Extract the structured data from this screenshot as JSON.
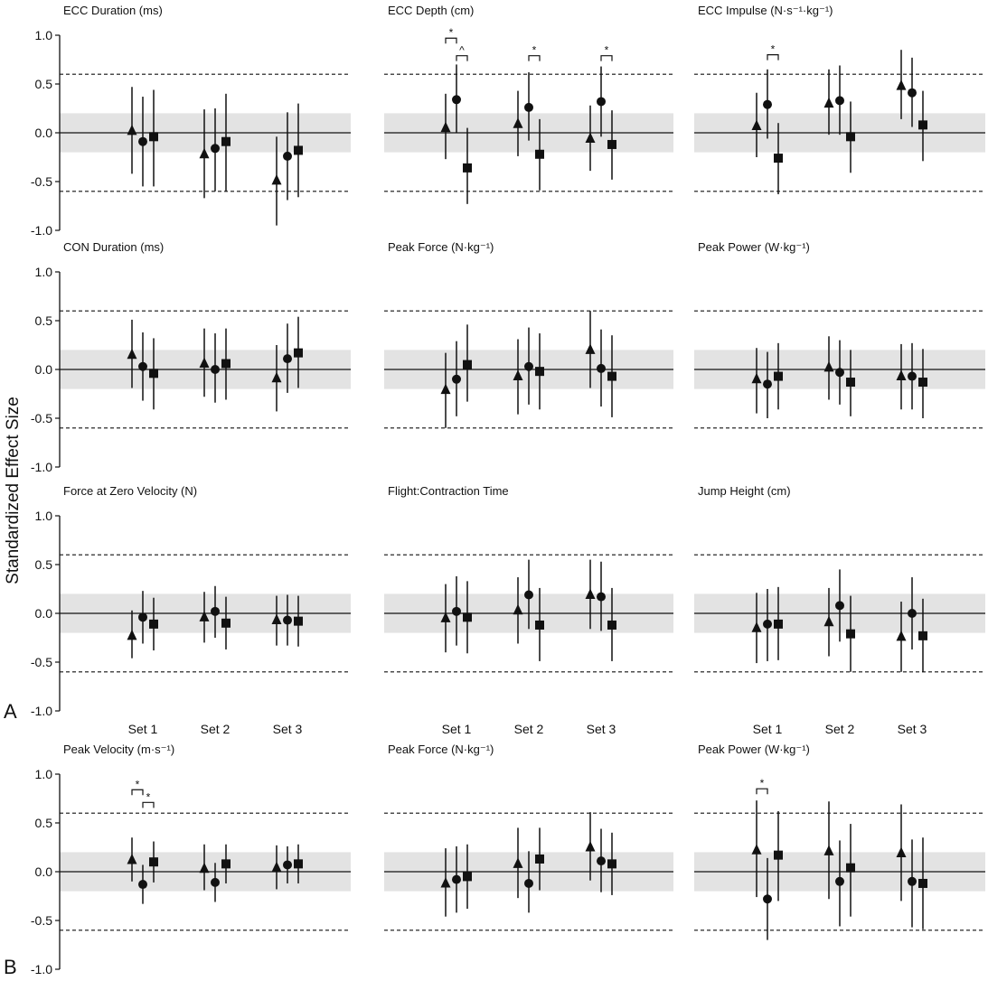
{
  "figure": {
    "ylabel": "Standardized Effect Size",
    "panel_labels": [
      "A",
      "B"
    ],
    "markers": [
      "triangle",
      "circle",
      "square"
    ],
    "colors": {
      "marker": "#111111",
      "band": "#e3e3e3",
      "line": "#111111"
    }
  },
  "chart_data": [
    {
      "type": "scatter",
      "title": "ECC Duration (ms)",
      "ylim": [
        -1.0,
        1.0
      ],
      "yticks": [
        "1.0",
        "0.5",
        "0.0",
        "-0.5",
        "-1.0"
      ],
      "yticks_visible": true,
      "categories": [
        "Set 1",
        "Set 2",
        "Set 3"
      ],
      "categories_visible": false,
      "baseline": 0.0,
      "band": [
        -0.2,
        0.2
      ],
      "thresholds": [
        0.6,
        -0.6
      ],
      "series": [
        [
          {
            "y": 0.02,
            "lo": -0.42,
            "hi": 0.47
          },
          {
            "y": -0.09,
            "lo": -0.55,
            "hi": 0.37
          },
          {
            "y": -0.04,
            "lo": -0.55,
            "hi": 0.44
          }
        ],
        [
          {
            "y": -0.22,
            "lo": -0.67,
            "hi": 0.24
          },
          {
            "y": -0.16,
            "lo": -0.6,
            "hi": 0.25
          },
          {
            "y": -0.09,
            "lo": -0.6,
            "hi": 0.4
          }
        ],
        [
          {
            "y": -0.49,
            "lo": -0.95,
            "hi": -0.04
          },
          {
            "y": -0.24,
            "lo": -0.69,
            "hi": 0.21
          },
          {
            "y": -0.18,
            "lo": -0.66,
            "hi": 0.3
          }
        ]
      ],
      "brackets": []
    },
    {
      "type": "scatter",
      "title": "ECC Depth (cm)",
      "ylim": [
        -1.0,
        1.0
      ],
      "yticks": [
        "1.0",
        "0.5",
        "0.0",
        "-0.5",
        "-1.0"
      ],
      "yticks_visible": false,
      "categories": [
        "Set 1",
        "Set 2",
        "Set 3"
      ],
      "categories_visible": false,
      "baseline": 0.0,
      "band": [
        -0.2,
        0.2
      ],
      "thresholds": [
        0.6,
        -0.6
      ],
      "series": [
        [
          {
            "y": 0.05,
            "lo": -0.27,
            "hi": 0.4
          },
          {
            "y": 0.34,
            "lo": 0.0,
            "hi": 0.7
          },
          {
            "y": -0.36,
            "lo": -0.73,
            "hi": 0.05
          }
        ],
        [
          {
            "y": 0.09,
            "lo": -0.24,
            "hi": 0.43
          },
          {
            "y": 0.26,
            "lo": -0.08,
            "hi": 0.62
          },
          {
            "y": -0.22,
            "lo": -0.59,
            "hi": 0.14
          }
        ],
        [
          {
            "y": -0.06,
            "lo": -0.39,
            "hi": 0.28
          },
          {
            "y": 0.32,
            "lo": -0.04,
            "hi": 0.68
          },
          {
            "y": -0.12,
            "lo": -0.48,
            "hi": 0.23
          }
        ]
      ],
      "brackets": [
        {
          "set": 0,
          "from": 0,
          "to": 1,
          "y": 0.97,
          "label": "*"
        },
        {
          "set": 0,
          "from": 1,
          "to": 2,
          "y": 0.79,
          "label": "^"
        },
        {
          "set": 1,
          "from": 1,
          "to": 2,
          "y": 0.79,
          "label": "*"
        },
        {
          "set": 2,
          "from": 1,
          "to": 2,
          "y": 0.79,
          "label": "*"
        }
      ]
    },
    {
      "type": "scatter",
      "title": "ECC Impulse (N·s⁻¹·kg⁻¹)",
      "ylim": [
        -1.0,
        1.0
      ],
      "yticks": [
        "1.0",
        "0.5",
        "0.0",
        "-0.5",
        "-1.0"
      ],
      "yticks_visible": false,
      "categories": [
        "Set 1",
        "Set 2",
        "Set 3"
      ],
      "categories_visible": false,
      "baseline": 0.0,
      "band": [
        -0.2,
        0.2
      ],
      "thresholds": [
        0.6,
        -0.6
      ],
      "series": [
        [
          {
            "y": 0.07,
            "lo": -0.25,
            "hi": 0.41
          },
          {
            "y": 0.29,
            "lo": -0.06,
            "hi": 0.65
          },
          {
            "y": -0.26,
            "lo": -0.63,
            "hi": 0.1
          }
        ],
        [
          {
            "y": 0.3,
            "lo": -0.02,
            "hi": 0.65
          },
          {
            "y": 0.33,
            "lo": -0.02,
            "hi": 0.69
          },
          {
            "y": -0.04,
            "lo": -0.41,
            "hi": 0.32
          }
        ],
        [
          {
            "y": 0.48,
            "lo": 0.14,
            "hi": 0.85
          },
          {
            "y": 0.41,
            "lo": 0.06,
            "hi": 0.77
          },
          {
            "y": 0.08,
            "lo": -0.29,
            "hi": 0.43
          }
        ]
      ],
      "brackets": [
        {
          "set": 0,
          "from": 1,
          "to": 2,
          "y": 0.8,
          "label": "*"
        }
      ]
    },
    {
      "type": "scatter",
      "title": "CON Duration (ms)",
      "ylim": [
        -1.0,
        1.0
      ],
      "yticks": [
        "1.0",
        "0.5",
        "0.0",
        "-0.5",
        "-1.0"
      ],
      "yticks_visible": true,
      "categories": [
        "Set 1",
        "Set 2",
        "Set 3"
      ],
      "categories_visible": false,
      "baseline": 0.0,
      "band": [
        -0.2,
        0.2
      ],
      "thresholds": [
        0.6,
        -0.6
      ],
      "series": [
        [
          {
            "y": 0.15,
            "lo": -0.19,
            "hi": 0.51
          },
          {
            "y": 0.03,
            "lo": -0.32,
            "hi": 0.38
          },
          {
            "y": -0.04,
            "lo": -0.41,
            "hi": 0.32
          }
        ],
        [
          {
            "y": 0.06,
            "lo": -0.28,
            "hi": 0.42
          },
          {
            "y": 0.0,
            "lo": -0.34,
            "hi": 0.37
          },
          {
            "y": 0.06,
            "lo": -0.31,
            "hi": 0.42
          }
        ],
        [
          {
            "y": -0.09,
            "lo": -0.43,
            "hi": 0.25
          },
          {
            "y": 0.11,
            "lo": -0.24,
            "hi": 0.47
          },
          {
            "y": 0.17,
            "lo": -0.19,
            "hi": 0.54
          }
        ]
      ],
      "brackets": []
    },
    {
      "type": "scatter",
      "title": "Peak Force (N·kg⁻¹)",
      "ylim": [
        -1.0,
        1.0
      ],
      "yticks": [
        "1.0",
        "0.5",
        "0.0",
        "-0.5",
        "-1.0"
      ],
      "yticks_visible": false,
      "categories": [
        "Set 1",
        "Set 2",
        "Set 3"
      ],
      "categories_visible": false,
      "baseline": 0.0,
      "band": [
        -0.2,
        0.2
      ],
      "thresholds": [
        0.6,
        -0.6
      ],
      "series": [
        [
          {
            "y": -0.21,
            "lo": -0.6,
            "hi": 0.17
          },
          {
            "y": -0.1,
            "lo": -0.48,
            "hi": 0.29
          },
          {
            "y": 0.05,
            "lo": -0.33,
            "hi": 0.46
          }
        ],
        [
          {
            "y": -0.07,
            "lo": -0.46,
            "hi": 0.31
          },
          {
            "y": 0.03,
            "lo": -0.36,
            "hi": 0.43
          },
          {
            "y": -0.02,
            "lo": -0.41,
            "hi": 0.37
          }
        ],
        [
          {
            "y": 0.2,
            "lo": -0.19,
            "hi": 0.6
          },
          {
            "y": 0.01,
            "lo": -0.38,
            "hi": 0.41
          },
          {
            "y": -0.07,
            "lo": -0.49,
            "hi": 0.35
          }
        ]
      ],
      "brackets": []
    },
    {
      "type": "scatter",
      "title": "Peak Power (W·kg⁻¹)",
      "ylim": [
        -1.0,
        1.0
      ],
      "yticks": [
        "1.0",
        "0.5",
        "0.0",
        "-0.5",
        "-1.0"
      ],
      "yticks_visible": false,
      "categories": [
        "Set 1",
        "Set 2",
        "Set 3"
      ],
      "categories_visible": false,
      "baseline": 0.0,
      "band": [
        -0.2,
        0.2
      ],
      "thresholds": [
        0.6,
        -0.6
      ],
      "series": [
        [
          {
            "y": -0.1,
            "lo": -0.45,
            "hi": 0.22
          },
          {
            "y": -0.15,
            "lo": -0.5,
            "hi": 0.18
          },
          {
            "y": -0.07,
            "lo": -0.41,
            "hi": 0.27
          }
        ],
        [
          {
            "y": 0.02,
            "lo": -0.31,
            "hi": 0.34
          },
          {
            "y": -0.03,
            "lo": -0.36,
            "hi": 0.3
          },
          {
            "y": -0.13,
            "lo": -0.48,
            "hi": 0.2
          }
        ],
        [
          {
            "y": -0.07,
            "lo": -0.41,
            "hi": 0.26
          },
          {
            "y": -0.07,
            "lo": -0.41,
            "hi": 0.27
          },
          {
            "y": -0.13,
            "lo": -0.5,
            "hi": 0.21
          }
        ]
      ],
      "brackets": []
    },
    {
      "type": "scatter",
      "title": "Force at Zero Velocity (N)",
      "ylim": [
        -1.0,
        1.0
      ],
      "yticks": [
        "1.0",
        "0.5",
        "0.0",
        "-0.5",
        "-1.0"
      ],
      "yticks_visible": true,
      "categories": [
        "Set 1",
        "Set 2",
        "Set 3"
      ],
      "categories_visible": true,
      "baseline": 0.0,
      "band": [
        -0.2,
        0.2
      ],
      "thresholds": [
        0.6,
        -0.6
      ],
      "series": [
        [
          {
            "y": -0.23,
            "lo": -0.46,
            "hi": 0.03
          },
          {
            "y": -0.04,
            "lo": -0.31,
            "hi": 0.23
          },
          {
            "y": -0.11,
            "lo": -0.38,
            "hi": 0.16
          }
        ],
        [
          {
            "y": -0.04,
            "lo": -0.3,
            "hi": 0.22
          },
          {
            "y": 0.02,
            "lo": -0.25,
            "hi": 0.28
          },
          {
            "y": -0.1,
            "lo": -0.37,
            "hi": 0.17
          }
        ],
        [
          {
            "y": -0.07,
            "lo": -0.33,
            "hi": 0.18
          },
          {
            "y": -0.07,
            "lo": -0.33,
            "hi": 0.19
          },
          {
            "y": -0.08,
            "lo": -0.34,
            "hi": 0.18
          }
        ]
      ],
      "brackets": []
    },
    {
      "type": "scatter",
      "title": "Flight:Contraction Time",
      "ylim": [
        -1.0,
        1.0
      ],
      "yticks": [
        "1.0",
        "0.5",
        "0.0",
        "-0.5",
        "-1.0"
      ],
      "yticks_visible": false,
      "categories": [
        "Set 1",
        "Set 2",
        "Set 3"
      ],
      "categories_visible": true,
      "baseline": 0.0,
      "band": [
        -0.2,
        0.2
      ],
      "thresholds": [
        0.6,
        -0.6
      ],
      "series": [
        [
          {
            "y": -0.05,
            "lo": -0.4,
            "hi": 0.3
          },
          {
            "y": 0.02,
            "lo": -0.33,
            "hi": 0.38
          },
          {
            "y": -0.04,
            "lo": -0.41,
            "hi": 0.33
          }
        ],
        [
          {
            "y": 0.03,
            "lo": -0.31,
            "hi": 0.37
          },
          {
            "y": 0.19,
            "lo": -0.16,
            "hi": 0.55
          },
          {
            "y": -0.12,
            "lo": -0.49,
            "hi": 0.26
          }
        ],
        [
          {
            "y": 0.19,
            "lo": -0.16,
            "hi": 0.55
          },
          {
            "y": 0.17,
            "lo": -0.18,
            "hi": 0.53
          },
          {
            "y": -0.12,
            "lo": -0.49,
            "hi": 0.26
          }
        ]
      ],
      "brackets": []
    },
    {
      "type": "scatter",
      "title": "Jump Height (cm)",
      "ylim": [
        -1.0,
        1.0
      ],
      "yticks": [
        "1.0",
        "0.5",
        "0.0",
        "-0.5",
        "-1.0"
      ],
      "yticks_visible": false,
      "categories": [
        "Set 1",
        "Set 2",
        "Set 3"
      ],
      "categories_visible": true,
      "baseline": 0.0,
      "band": [
        -0.2,
        0.2
      ],
      "thresholds": [
        0.6,
        -0.6
      ],
      "series": [
        [
          {
            "y": -0.15,
            "lo": -0.51,
            "hi": 0.21
          },
          {
            "y": -0.11,
            "lo": -0.49,
            "hi": 0.25
          },
          {
            "y": -0.11,
            "lo": -0.48,
            "hi": 0.27
          }
        ],
        [
          {
            "y": -0.09,
            "lo": -0.44,
            "hi": 0.26
          },
          {
            "y": 0.08,
            "lo": -0.29,
            "hi": 0.45
          },
          {
            "y": -0.21,
            "lo": -0.6,
            "hi": 0.18
          }
        ],
        [
          {
            "y": -0.24,
            "lo": -0.6,
            "hi": 0.12
          },
          {
            "y": 0.0,
            "lo": -0.37,
            "hi": 0.37
          },
          {
            "y": -0.23,
            "lo": -0.6,
            "hi": 0.15
          }
        ]
      ],
      "brackets": []
    },
    {
      "type": "scatter",
      "title": "Peak Velocity (m·s⁻¹)",
      "ylim": [
        -1.0,
        1.0
      ],
      "yticks": [
        "1.0",
        "0.5",
        "0.0",
        "-0.5",
        "-1.0"
      ],
      "yticks_visible": true,
      "categories": [
        "Set 1",
        "Set 2",
        "Set 3"
      ],
      "categories_visible": true,
      "baseline": 0.0,
      "band": [
        -0.2,
        0.2
      ],
      "thresholds": [
        0.6,
        -0.6
      ],
      "series": [
        [
          {
            "y": 0.12,
            "lo": -0.1,
            "hi": 0.35
          },
          {
            "y": -0.13,
            "lo": -0.33,
            "hi": 0.07
          },
          {
            "y": 0.1,
            "lo": -0.11,
            "hi": 0.31
          }
        ],
        [
          {
            "y": 0.03,
            "lo": -0.19,
            "hi": 0.28
          },
          {
            "y": -0.11,
            "lo": -0.31,
            "hi": 0.09
          },
          {
            "y": 0.08,
            "lo": -0.12,
            "hi": 0.28
          }
        ],
        [
          {
            "y": 0.04,
            "lo": -0.18,
            "hi": 0.27
          },
          {
            "y": 0.07,
            "lo": -0.12,
            "hi": 0.26
          },
          {
            "y": 0.08,
            "lo": -0.12,
            "hi": 0.28
          }
        ]
      ],
      "brackets": [
        {
          "set": 0,
          "from": 0,
          "to": 1,
          "y": 0.84,
          "label": "*"
        },
        {
          "set": 0,
          "from": 1,
          "to": 2,
          "y": 0.71,
          "label": "*"
        }
      ]
    },
    {
      "type": "scatter",
      "title": "Peak Force (N·kg⁻¹)",
      "ylim": [
        -1.0,
        1.0
      ],
      "yticks": [
        "1.0",
        "0.5",
        "0.0",
        "-0.5",
        "-1.0"
      ],
      "yticks_visible": false,
      "categories": [
        "Set 1",
        "Set 2",
        "Set 3"
      ],
      "categories_visible": true,
      "baseline": 0.0,
      "band": [
        -0.2,
        0.2
      ],
      "thresholds": [
        0.6,
        -0.6
      ],
      "series": [
        [
          {
            "y": -0.12,
            "lo": -0.46,
            "hi": 0.24
          },
          {
            "y": -0.08,
            "lo": -0.42,
            "hi": 0.26
          },
          {
            "y": -0.05,
            "lo": -0.38,
            "hi": 0.28
          }
        ],
        [
          {
            "y": 0.08,
            "lo": -0.27,
            "hi": 0.45
          },
          {
            "y": -0.12,
            "lo": -0.42,
            "hi": 0.21
          },
          {
            "y": 0.13,
            "lo": -0.19,
            "hi": 0.45
          }
        ],
        [
          {
            "y": 0.25,
            "lo": -0.09,
            "hi": 0.61
          },
          {
            "y": 0.11,
            "lo": -0.21,
            "hi": 0.44
          },
          {
            "y": 0.08,
            "lo": -0.24,
            "hi": 0.4
          }
        ]
      ],
      "brackets": []
    },
    {
      "type": "scatter",
      "title": "Peak Power (W·kg⁻¹)",
      "ylim": [
        -1.0,
        1.0
      ],
      "yticks": [
        "1.0",
        "0.5",
        "0.0",
        "-0.5",
        "-1.0"
      ],
      "yticks_visible": false,
      "categories": [
        "Set 1",
        "Set 2",
        "Set 3"
      ],
      "categories_visible": true,
      "baseline": 0.0,
      "band": [
        -0.2,
        0.2
      ],
      "thresholds": [
        0.6,
        -0.6
      ],
      "series": [
        [
          {
            "y": 0.22,
            "lo": -0.26,
            "hi": 0.73
          },
          {
            "y": -0.28,
            "lo": -0.7,
            "hi": 0.14
          },
          {
            "y": 0.17,
            "lo": -0.3,
            "hi": 0.62
          }
        ],
        [
          {
            "y": 0.21,
            "lo": -0.28,
            "hi": 0.72
          },
          {
            "y": -0.1,
            "lo": -0.56,
            "hi": 0.32
          },
          {
            "y": 0.04,
            "lo": -0.46,
            "hi": 0.49
          }
        ],
        [
          {
            "y": 0.19,
            "lo": -0.3,
            "hi": 0.69
          },
          {
            "y": -0.1,
            "lo": -0.57,
            "hi": 0.33
          },
          {
            "y": -0.12,
            "lo": -0.59,
            "hi": 0.35
          }
        ]
      ],
      "brackets": [
        {
          "set": 0,
          "from": 0,
          "to": 1,
          "y": 0.85,
          "label": "*"
        }
      ]
    }
  ]
}
